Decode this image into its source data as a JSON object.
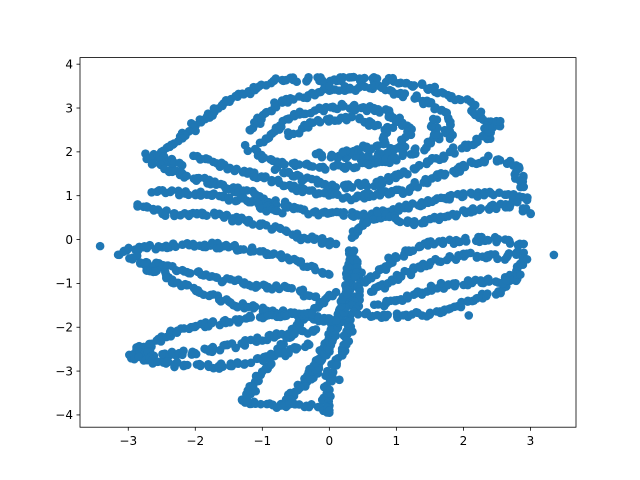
{
  "chart_data": {
    "type": "scatter",
    "title": "",
    "xlabel": "",
    "ylabel": "",
    "xlim": [
      -3.72,
      3.68
    ],
    "ylim": [
      -4.28,
      4.15
    ],
    "grid": false,
    "legend": "none",
    "marker": "circle",
    "series": [
      {
        "name": "points",
        "color": "#1f77b4",
        "description": "dense scatter of points tracing a rose outline: petal spirals in the upper half, stem toward bottom, leaves on both sides"
      }
    ],
    "xticks": [
      -3,
      -2,
      -1,
      0,
      1,
      2,
      3
    ],
    "yticks": [
      -4,
      -3,
      -2,
      -1,
      0,
      1,
      2,
      3,
      4
    ],
    "xtick_labels": [
      "−3",
      "−2",
      "−1",
      "0",
      "1",
      "2",
      "3"
    ],
    "ytick_labels": [
      "−4",
      "−3",
      "−2",
      "−1",
      "0",
      "1",
      "2",
      "3",
      "4"
    ],
    "outliers": [
      {
        "x": -3.42,
        "y": -0.15
      },
      {
        "x": 3.35,
        "y": -0.35
      },
      {
        "x": 2.08,
        "y": -1.73
      },
      {
        "x": 0.15,
        "y": -3.2
      }
    ],
    "strokes": [
      {
        "name": "petal-outer-top",
        "points": [
          [
            -2.0,
            2.6
          ],
          [
            -1.5,
            3.2
          ],
          [
            -0.8,
            3.65
          ],
          [
            0.0,
            3.65
          ],
          [
            0.8,
            3.65
          ],
          [
            1.5,
            3.45
          ],
          [
            2.1,
            3.1
          ],
          [
            2.35,
            2.7
          ],
          [
            2.4,
            2.3
          ]
        ]
      },
      {
        "name": "petal-outer-left",
        "points": [
          [
            -2.0,
            2.6
          ],
          [
            -2.3,
            2.2
          ],
          [
            -2.6,
            1.9
          ],
          [
            -2.2,
            1.7
          ]
        ]
      },
      {
        "name": "petal-inner-arch",
        "points": [
          [
            -1.2,
            2.5
          ],
          [
            -0.8,
            3.1
          ],
          [
            0.0,
            3.45
          ],
          [
            0.8,
            3.45
          ],
          [
            1.4,
            3.2
          ],
          [
            1.75,
            2.8
          ],
          [
            1.8,
            2.3
          ]
        ]
      },
      {
        "name": "petal-swirl-a",
        "points": [
          [
            -1.0,
            2.2
          ],
          [
            -0.6,
            2.8
          ],
          [
            0.1,
            3.05
          ],
          [
            0.8,
            2.95
          ],
          [
            1.2,
            2.55
          ],
          [
            1.1,
            2.1
          ],
          [
            0.5,
            1.85
          ],
          [
            -0.2,
            1.95
          ]
        ]
      },
      {
        "name": "petal-swirl-b",
        "points": [
          [
            -0.6,
            2.4
          ],
          [
            -0.2,
            2.7
          ],
          [
            0.4,
            2.75
          ],
          [
            0.9,
            2.5
          ],
          [
            0.8,
            2.15
          ],
          [
            0.2,
            2.0
          ]
        ]
      },
      {
        "name": "petal-swirl-c",
        "points": [
          [
            -1.2,
            2.1
          ],
          [
            -0.8,
            1.75
          ],
          [
            -0.1,
            1.65
          ],
          [
            0.6,
            1.7
          ],
          [
            1.2,
            1.95
          ],
          [
            1.6,
            2.3
          ],
          [
            1.55,
            2.75
          ]
        ]
      },
      {
        "name": "petal-right-ribbon",
        "points": [
          [
            -0.8,
            1.6
          ],
          [
            0.0,
            1.2
          ],
          [
            0.7,
            1.25
          ],
          [
            1.4,
            1.7
          ],
          [
            1.9,
            2.05
          ],
          [
            2.3,
            2.35
          ],
          [
            2.55,
            2.7
          ]
        ]
      },
      {
        "name": "petal-lower-ribbon",
        "points": [
          [
            -2.0,
            1.9
          ],
          [
            -1.4,
            1.6
          ],
          [
            -0.6,
            1.2
          ],
          [
            0.3,
            0.95
          ],
          [
            1.1,
            1.1
          ],
          [
            1.8,
            1.55
          ],
          [
            2.4,
            1.85
          ],
          [
            2.75,
            1.7
          ],
          [
            2.9,
            1.2
          ]
        ]
      },
      {
        "name": "petal-bottom-fold",
        "points": [
          [
            -2.8,
            1.9
          ],
          [
            -2.2,
            1.5
          ],
          [
            -1.4,
            1.15
          ],
          [
            -0.8,
            0.85
          ],
          [
            -0.2,
            0.6
          ],
          [
            0.5,
            0.55
          ],
          [
            1.2,
            0.75
          ],
          [
            1.9,
            1.0
          ],
          [
            2.5,
            1.05
          ],
          [
            2.95,
            0.9
          ]
        ]
      },
      {
        "name": "sepal-left",
        "points": [
          [
            -2.9,
            0.8
          ],
          [
            -2.4,
            0.6
          ],
          [
            -1.7,
            0.55
          ],
          [
            -1.0,
            0.35
          ],
          [
            -0.4,
            0.05
          ],
          [
            0.1,
            -0.1
          ]
        ]
      },
      {
        "name": "sepal-left-upper",
        "points": [
          [
            -2.6,
            1.1
          ],
          [
            -2.0,
            1.05
          ],
          [
            -1.3,
            0.9
          ],
          [
            -0.7,
            0.6
          ]
        ]
      },
      {
        "name": "sepal-right",
        "points": [
          [
            0.3,
            0.1
          ],
          [
            0.8,
            0.6
          ],
          [
            1.2,
            0.35
          ],
          [
            1.6,
            0.5
          ],
          [
            2.2,
            0.7
          ],
          [
            2.8,
            0.8
          ],
          [
            3.0,
            0.6
          ]
        ]
      },
      {
        "name": "stem-main",
        "points": [
          [
            0.35,
            -0.2
          ],
          [
            0.3,
            -0.9
          ],
          [
            0.2,
            -1.6
          ],
          [
            0.0,
            -2.3
          ],
          [
            -0.2,
            -2.9
          ],
          [
            -0.45,
            -3.4
          ],
          [
            -0.7,
            -3.75
          ]
        ]
      },
      {
        "name": "stem-right",
        "points": [
          [
            0.4,
            -0.4
          ],
          [
            0.45,
            -1.1
          ],
          [
            0.35,
            -1.8
          ],
          [
            0.2,
            -2.5
          ],
          [
            0.0,
            -3.1
          ],
          [
            -0.05,
            -3.7
          ],
          [
            0.0,
            -3.95
          ]
        ]
      },
      {
        "name": "stem-base",
        "points": [
          [
            -1.2,
            -3.7
          ],
          [
            -0.8,
            -3.8
          ],
          [
            -0.3,
            -3.8
          ],
          [
            0.0,
            -3.9
          ]
        ]
      },
      {
        "name": "stem-base-left",
        "points": [
          [
            -1.3,
            -3.75
          ],
          [
            -1.15,
            -3.4
          ],
          [
            -1.0,
            -3.0
          ],
          [
            -0.75,
            -2.5
          ],
          [
            -0.5,
            -2.0
          ],
          [
            -0.2,
            -1.6
          ],
          [
            0.1,
            -1.2
          ]
        ]
      },
      {
        "name": "stem-mid",
        "points": [
          [
            -0.3,
            -3.2
          ],
          [
            -0.1,
            -2.7
          ],
          [
            0.05,
            -2.2
          ],
          [
            0.15,
            -1.7
          ],
          [
            0.25,
            -1.2
          ]
        ]
      },
      {
        "name": "leaf-left-top-edge",
        "points": [
          [
            -3.2,
            -0.3
          ],
          [
            -2.8,
            -0.2
          ],
          [
            -2.2,
            -0.1
          ],
          [
            -1.5,
            -0.15
          ],
          [
            -0.9,
            -0.3
          ],
          [
            -0.4,
            -0.55
          ],
          [
            0.0,
            -0.8
          ]
        ]
      },
      {
        "name": "leaf-left-mid",
        "points": [
          [
            -3.0,
            -0.4
          ],
          [
            -2.5,
            -0.6
          ],
          [
            -1.9,
            -0.8
          ],
          [
            -1.3,
            -1.0
          ],
          [
            -0.7,
            -1.1
          ],
          [
            -0.2,
            -1.3
          ]
        ]
      },
      {
        "name": "leaf-left-low",
        "points": [
          [
            -2.8,
            -0.6
          ],
          [
            -2.2,
            -1.0
          ],
          [
            -1.6,
            -1.4
          ],
          [
            -1.0,
            -1.6
          ],
          [
            -0.4,
            -1.75
          ],
          [
            0.1,
            -1.85
          ]
        ]
      },
      {
        "name": "leaf-left-bottom-edge",
        "points": [
          [
            -3.0,
            -2.65
          ],
          [
            -2.6,
            -2.3
          ],
          [
            -2.1,
            -2.0
          ],
          [
            -1.5,
            -1.85
          ],
          [
            -0.9,
            -1.75
          ],
          [
            -0.4,
            -1.7
          ],
          [
            0.0,
            -1.8
          ]
        ]
      },
      {
        "name": "leaf-left-bottom-vein",
        "points": [
          [
            -2.8,
            -2.6
          ],
          [
            -2.3,
            -2.6
          ],
          [
            -1.7,
            -2.5
          ],
          [
            -1.1,
            -2.3
          ],
          [
            -0.6,
            -2.15
          ],
          [
            -0.2,
            -2.05
          ]
        ]
      },
      {
        "name": "leaf-left-bottom-lower",
        "points": [
          [
            -2.9,
            -2.7
          ],
          [
            -2.3,
            -2.85
          ],
          [
            -1.7,
            -2.9
          ],
          [
            -1.2,
            -2.8
          ],
          [
            -0.7,
            -2.6
          ],
          [
            -0.3,
            -2.4
          ]
        ]
      },
      {
        "name": "leaf-right-top-edge",
        "points": [
          [
            0.5,
            -1.0
          ],
          [
            1.0,
            -0.4
          ],
          [
            1.5,
            -0.1
          ],
          [
            2.0,
            0.0
          ],
          [
            2.5,
            0.0
          ],
          [
            2.9,
            -0.1
          ]
        ]
      },
      {
        "name": "leaf-right-mid",
        "points": [
          [
            0.6,
            -1.2
          ],
          [
            1.1,
            -0.8
          ],
          [
            1.6,
            -0.5
          ],
          [
            2.1,
            -0.35
          ],
          [
            2.6,
            -0.4
          ],
          [
            2.9,
            -0.3
          ]
        ]
      },
      {
        "name": "leaf-right-low",
        "points": [
          [
            0.7,
            -1.5
          ],
          [
            1.2,
            -1.3
          ],
          [
            1.7,
            -1.05
          ],
          [
            2.2,
            -0.95
          ],
          [
            2.7,
            -0.9
          ],
          [
            2.95,
            -0.45
          ]
        ]
      },
      {
        "name": "leaf-right-bottom-edge",
        "points": [
          [
            0.5,
            -1.7
          ],
          [
            1.0,
            -1.75
          ],
          [
            1.5,
            -1.7
          ],
          [
            2.0,
            -1.45
          ],
          [
            2.5,
            -1.2
          ],
          [
            2.85,
            -0.8
          ]
        ]
      }
    ]
  }
}
